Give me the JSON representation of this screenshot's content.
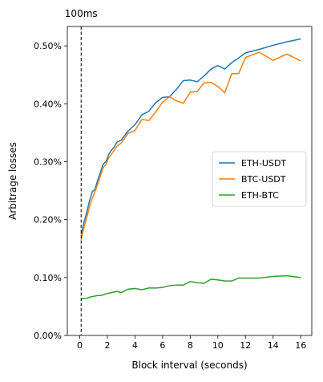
{
  "chart_data": {
    "type": "line",
    "title": "",
    "xlabel": "Block interval (seconds)",
    "ylabel": "Arbitrage losses",
    "xlim": [
      -0.9,
      16.8
    ],
    "ylim": [
      0.0,
      0.5335
    ],
    "x_ticks": [
      0,
      2,
      4,
      6,
      8,
      10,
      12,
      14,
      16
    ],
    "x_tick_labels": [
      "0",
      "2",
      "4",
      "6",
      "8",
      "10",
      "12",
      "14",
      "16"
    ],
    "y_ticks": [
      0.0,
      0.1,
      0.2,
      0.3,
      0.4,
      0.5
    ],
    "y_tick_labels": [
      "0.00%",
      "0.10%",
      "0.20%",
      "0.30%",
      "0.40%",
      "0.50%"
    ],
    "grid": false,
    "legend_position": "center-right",
    "vline": {
      "x": 0.1,
      "label": "100ms",
      "style": "dashed",
      "color": "#000000"
    },
    "series": [
      {
        "name": "ETH-USDT",
        "color": "#1f77b4",
        "x": [
          0.1,
          0.3,
          0.5,
          0.7,
          0.9,
          1.1,
          1.3,
          1.5,
          1.7,
          1.9,
          2.1,
          2.3,
          2.5,
          2.7,
          3.0,
          3.5,
          4.0,
          4.5,
          5.0,
          5.5,
          6.0,
          6.5,
          7.0,
          7.5,
          8.0,
          8.5,
          9.0,
          9.5,
          10.0,
          10.5,
          11.0,
          11.5,
          12.0,
          13.0,
          14.0,
          15.0,
          16.0
        ],
        "y": [
          0.174,
          0.195,
          0.212,
          0.232,
          0.248,
          0.252,
          0.268,
          0.282,
          0.296,
          0.3,
          0.313,
          0.32,
          0.326,
          0.334,
          0.337,
          0.353,
          0.364,
          0.381,
          0.387,
          0.402,
          0.411,
          0.412,
          0.425,
          0.44,
          0.441,
          0.438,
          0.448,
          0.46,
          0.466,
          0.46,
          0.471,
          0.479,
          0.488,
          0.494,
          0.501,
          0.507,
          0.512
        ]
      },
      {
        "name": "BTC-USDT",
        "color": "#ff7f0e",
        "x": [
          0.1,
          0.3,
          0.5,
          0.7,
          0.9,
          1.1,
          1.3,
          1.5,
          1.7,
          1.9,
          2.1,
          2.3,
          2.5,
          2.7,
          3.0,
          3.5,
          4.0,
          4.5,
          5.0,
          5.5,
          6.0,
          6.5,
          7.0,
          7.5,
          8.0,
          8.5,
          9.0,
          9.5,
          10.0,
          10.5,
          11.0,
          11.5,
          12.0,
          13.0,
          14.0,
          15.0,
          16.0
        ],
        "y": [
          0.165,
          0.186,
          0.203,
          0.222,
          0.236,
          0.248,
          0.261,
          0.276,
          0.29,
          0.295,
          0.307,
          0.313,
          0.32,
          0.327,
          0.332,
          0.349,
          0.354,
          0.373,
          0.371,
          0.386,
          0.403,
          0.412,
          0.405,
          0.401,
          0.42,
          0.421,
          0.436,
          0.437,
          0.43,
          0.419,
          0.452,
          0.452,
          0.48,
          0.489,
          0.475,
          0.486,
          0.474
        ]
      },
      {
        "name": "ETH-BTC",
        "color": "#2ca02c",
        "x": [
          0.1,
          0.3,
          0.5,
          0.7,
          0.9,
          1.1,
          1.3,
          1.5,
          1.7,
          1.9,
          2.1,
          2.3,
          2.5,
          2.7,
          3.0,
          3.5,
          4.0,
          4.5,
          5.0,
          5.5,
          6.0,
          6.5,
          7.0,
          7.5,
          8.0,
          8.5,
          9.0,
          9.5,
          10.0,
          10.5,
          11.0,
          11.5,
          12.0,
          13.0,
          14.0,
          15.0,
          16.0
        ],
        "y": [
          0.063,
          0.064,
          0.064,
          0.066,
          0.067,
          0.068,
          0.069,
          0.069,
          0.07,
          0.072,
          0.073,
          0.074,
          0.075,
          0.076,
          0.074,
          0.08,
          0.081,
          0.079,
          0.082,
          0.082,
          0.083,
          0.086,
          0.087,
          0.087,
          0.093,
          0.091,
          0.09,
          0.097,
          0.096,
          0.094,
          0.094,
          0.099,
          0.099,
          0.099,
          0.102,
          0.103,
          0.1
        ]
      }
    ]
  }
}
